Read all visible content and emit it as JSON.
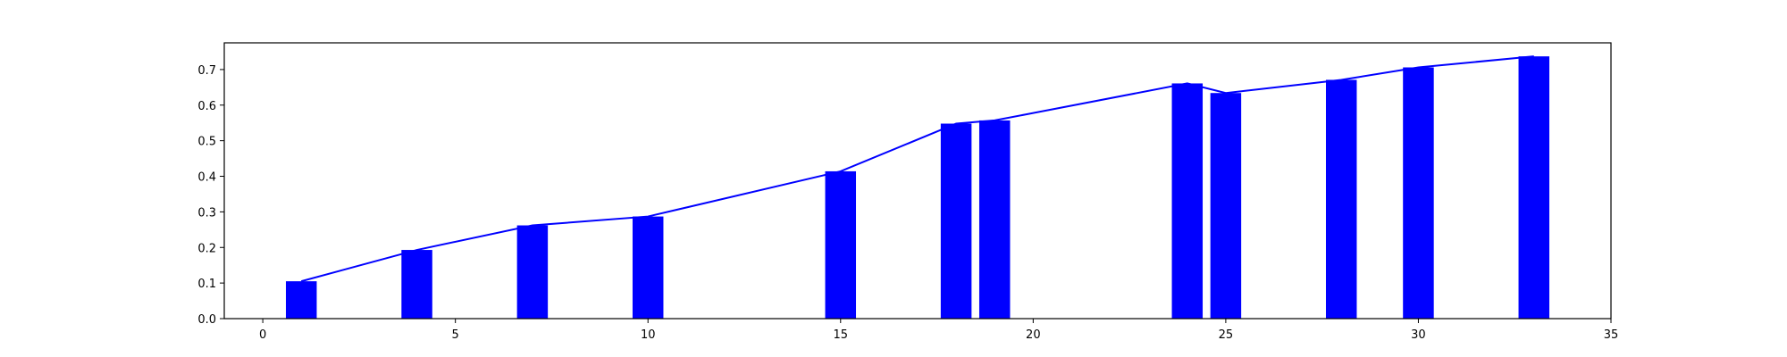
{
  "chart_data": {
    "type": "bar",
    "title": "",
    "xlabel": "",
    "ylabel": "",
    "xlim": [
      -1,
      35
    ],
    "ylim": [
      0,
      0.775
    ],
    "grid": false,
    "legend": "none",
    "bar_width": 0.8,
    "bar_color": "#0000ff",
    "line_color": "#0000ff",
    "xticks": [
      0,
      5,
      10,
      15,
      20,
      25,
      30,
      35
    ],
    "yticks": [
      0.0,
      0.1,
      0.2,
      0.3,
      0.4,
      0.5,
      0.6,
      0.7
    ],
    "xtick_labels": [
      "0",
      "5",
      "10",
      "15",
      "20",
      "25",
      "30",
      "35"
    ],
    "ytick_labels": [
      "0.0",
      "0.1",
      "0.2",
      "0.3",
      "0.4",
      "0.5",
      "0.6",
      "0.7"
    ],
    "x": [
      1,
      4,
      7,
      10,
      15,
      18,
      19,
      24,
      25,
      28,
      30,
      33
    ],
    "values": [
      0.105,
      0.193,
      0.262,
      0.287,
      0.414,
      0.548,
      0.557,
      0.661,
      0.634,
      0.671,
      0.706,
      0.737
    ]
  }
}
